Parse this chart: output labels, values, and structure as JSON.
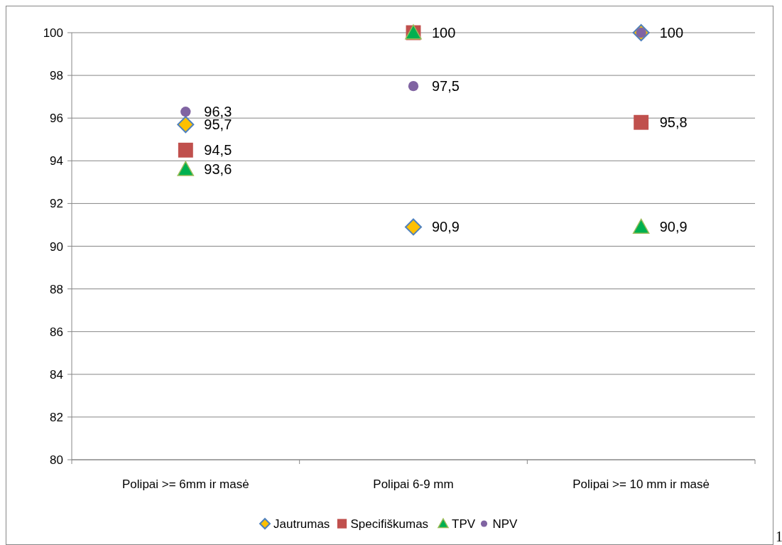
{
  "chart_data": {
    "type": "scatter",
    "categories": [
      "Polipai >= 6mm ir masė",
      "Polipai 6-9 mm",
      "Polipai >= 10 mm ir masė"
    ],
    "series": [
      {
        "name": "Jautrumas",
        "color": "#ffc000",
        "marker": "diamond",
        "values": [
          95.7,
          90.9,
          100
        ],
        "value_labels": [
          "95,7",
          "90,9",
          "100"
        ]
      },
      {
        "name": "Specifiškumas",
        "color": "#c0504d",
        "marker": "square",
        "values": [
          94.5,
          100,
          95.8
        ],
        "value_labels": [
          "94,5",
          null,
          "95,8"
        ]
      },
      {
        "name": "TPV",
        "color": "#00b050",
        "marker": "triangle",
        "values": [
          93.6,
          100,
          90.9
        ],
        "value_labels": [
          "93,6",
          "100",
          "90,9"
        ]
      },
      {
        "name": "NPV",
        "color": "#8064a2",
        "marker": "circle",
        "values": [
          96.3,
          97.5,
          100
        ],
        "value_labels": [
          "96,3",
          "97,5",
          null
        ]
      }
    ],
    "ylim": [
      80,
      100
    ],
    "yticks": [
      80,
      82,
      84,
      86,
      88,
      90,
      92,
      94,
      96,
      98,
      100
    ],
    "grid": "y",
    "legend": "bottom",
    "annotations": [
      "1"
    ]
  }
}
